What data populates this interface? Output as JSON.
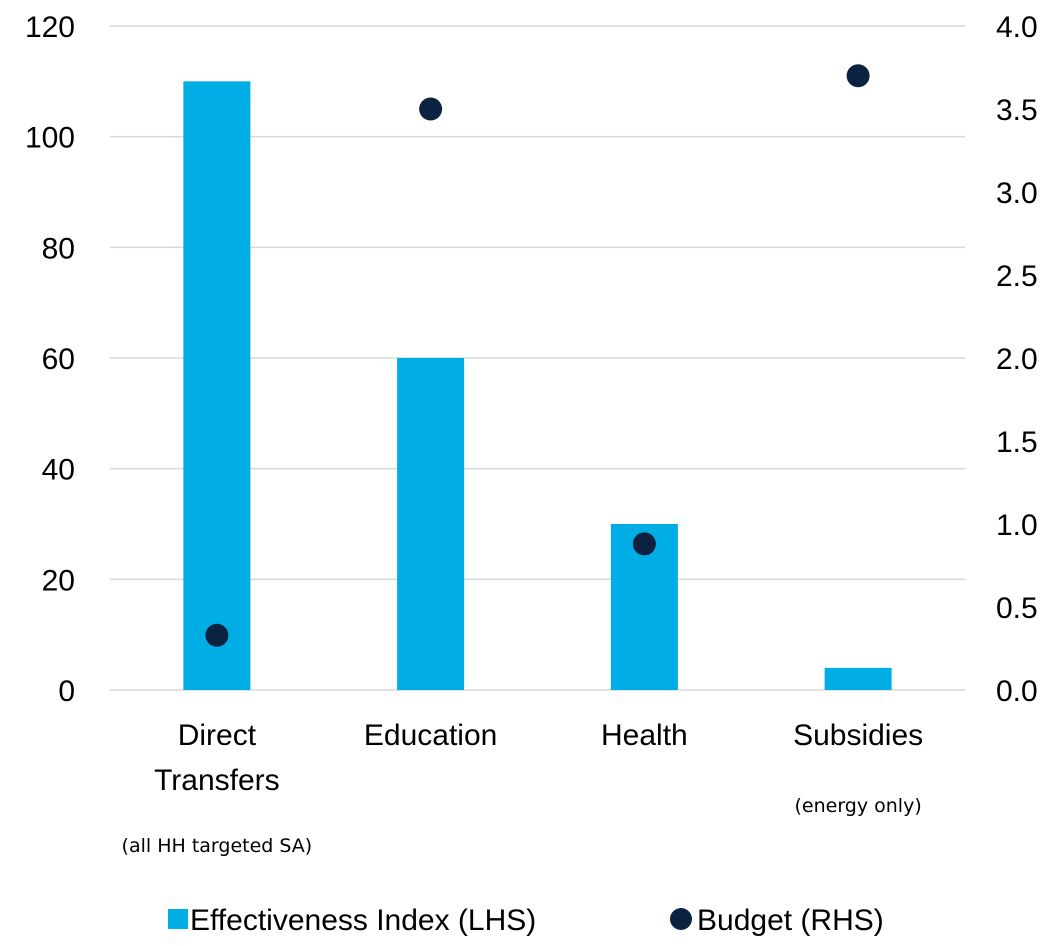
{
  "chart_data": {
    "type": "bar",
    "categories": [
      "Direct Transfers",
      "Education",
      "Health",
      "Subsidies"
    ],
    "category_labels": [
      [
        "Direct",
        "Transfers"
      ],
      [
        "Education"
      ],
      [
        "Health"
      ],
      [
        "Subsidies"
      ]
    ],
    "category_notes": [
      "(all HH targeted SA)",
      "",
      "",
      "(energy only)"
    ],
    "series": [
      {
        "name": "Effectiveness Index (LHS)",
        "type": "bar",
        "axis": "left",
        "color": "#00ADE4",
        "values": [
          110,
          60,
          30,
          4
        ]
      },
      {
        "name": "Budget (RHS)",
        "type": "scatter",
        "axis": "right",
        "color": "#0B2341",
        "values": [
          0.33,
          3.5,
          0.88,
          3.7
        ]
      }
    ],
    "left_axis": {
      "ylim": [
        0,
        120
      ],
      "ticks": [
        "0",
        "20",
        "40",
        "60",
        "80",
        "100",
        "120"
      ]
    },
    "right_axis": {
      "ylim": [
        0,
        4.0
      ],
      "ticks": [
        "0.0",
        "0.5",
        "1.0",
        "1.5",
        "2.0",
        "2.5",
        "3.0",
        "3.5",
        "4.0"
      ]
    },
    "grid": true,
    "gridline_color": "#D9D9D9",
    "legend_position": "bottom",
    "title": "",
    "xlabel": "",
    "ylabel": ""
  }
}
